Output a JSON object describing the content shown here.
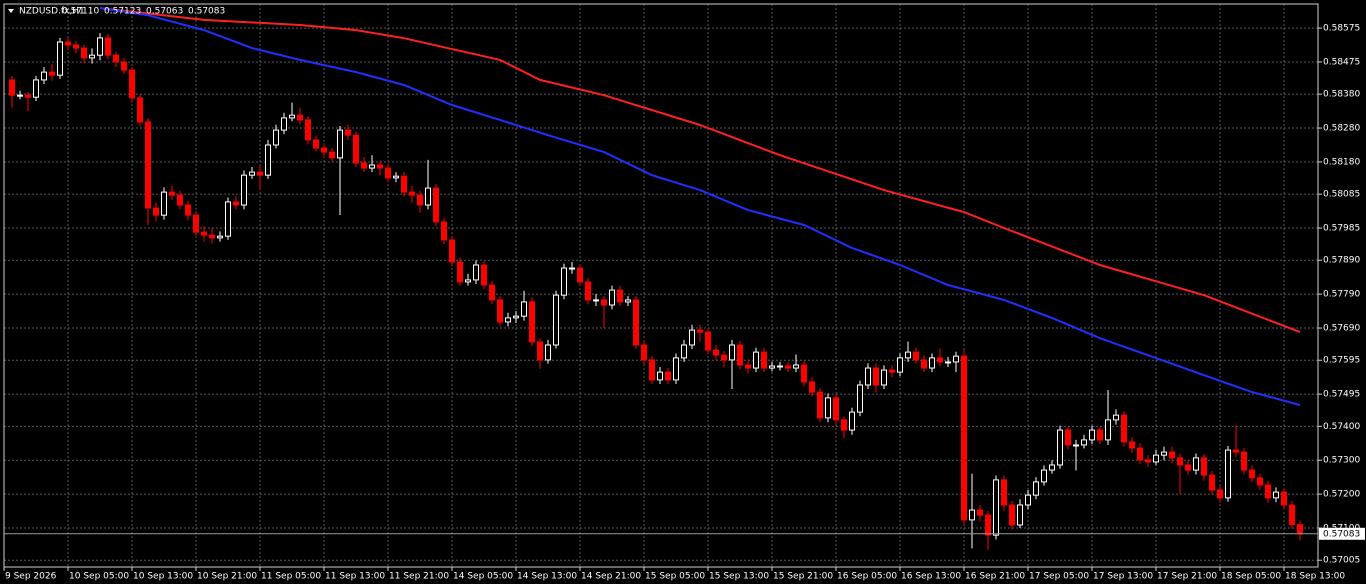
{
  "chart_data": {
    "type": "candlestick",
    "title": "NZDUSD.fx,H1",
    "header_values": [
      "0.57110",
      "0.57123",
      "0.57063",
      "0.57083"
    ],
    "up_color": "#000000",
    "up_stroke": "#ffffff",
    "down_color": "#ff0000",
    "down_stroke": "#ff0000",
    "ylim": [
      0.56985,
      0.58646
    ],
    "yticks": [
      0.58575,
      0.58475,
      {
        "value": 0.5838,
        "label": "0.58380"
      },
      {
        "value": 0.5828,
        "label": "0.58280"
      },
      {
        "value": 0.5818,
        "label": "0.58180"
      },
      0.58085,
      0.57985,
      {
        "value": 0.5789,
        "label": "0.57890"
      },
      {
        "value": 0.5779,
        "label": "0.57790"
      },
      {
        "value": 0.5769,
        "label": "0.57690"
      },
      0.57595,
      0.57495,
      {
        "value": 0.574,
        "label": "0.57400"
      },
      {
        "value": 0.573,
        "label": "0.57300"
      },
      {
        "value": 0.572,
        "label": "0.57200"
      },
      {
        "value": 0.571,
        "label": "0.57100"
      },
      0.57005
    ],
    "grid": true,
    "categories": [
      "9 Sep 2026",
      null,
      null,
      null,
      null,
      null,
      null,
      null,
      "10 Sep 05:00",
      null,
      null,
      null,
      null,
      null,
      null,
      null,
      "10 Sep 13:00",
      null,
      null,
      null,
      null,
      null,
      null,
      null,
      "10 Sep 21:00",
      null,
      null,
      null,
      null,
      null,
      null,
      null,
      "11 Sep 05:00",
      null,
      null,
      null,
      null,
      null,
      null,
      null,
      "11 Sep 13:00",
      null,
      null,
      null,
      null,
      null,
      null,
      null,
      "11 Sep 21:00",
      null,
      null,
      null,
      null,
      null,
      null,
      null,
      "14 Sep 05:00",
      null,
      null,
      null,
      null,
      null,
      null,
      null,
      "14 Sep 13:00",
      null,
      null,
      null,
      null,
      null,
      null,
      null,
      "14 Sep 21:00",
      null,
      null,
      null,
      null,
      null,
      null,
      null,
      "15 Sep 05:00",
      null,
      null,
      null,
      null,
      null,
      null,
      null,
      "15 Sep 13:00",
      null,
      null,
      null,
      null,
      null,
      null,
      null,
      "15 Sep 21:00",
      null,
      null,
      null,
      null,
      null,
      null,
      null,
      "16 Sep 05:00",
      null,
      null,
      null,
      null,
      null,
      null,
      null,
      "16 Sep 13:00",
      null,
      null,
      null,
      null,
      null,
      null,
      null,
      "16 Sep 21:00",
      null,
      null,
      null,
      null,
      null,
      null,
      null,
      "17 Sep 05:00",
      null,
      null,
      null,
      null,
      null,
      null,
      null,
      "17 Sep 13:00",
      null,
      null,
      null,
      null,
      null,
      null,
      null,
      "17 Sep 21:00",
      null,
      null,
      null,
      null,
      null,
      null,
      null,
      "18 Sep 05:00",
      null,
      null,
      null,
      null,
      null,
      null,
      null,
      "18 Sep 13:00",
      null
    ],
    "open": [
      0.58422,
      0.58377,
      0.58377,
      0.58371,
      0.58422,
      0.58445,
      0.58436,
      0.58534,
      0.58525,
      0.58516,
      0.58487,
      0.58495,
      0.58546,
      0.58495,
      0.58475,
      0.58451,
      0.58369,
      0.58298,
      0.58044,
      0.58023,
      0.58091,
      0.58082,
      0.58053,
      0.58023,
      0.57973,
      0.57964,
      0.57956,
      0.57961,
      0.58062,
      0.58053,
      0.58141,
      0.5815,
      0.58141,
      0.5823,
      0.58274,
      0.5831,
      0.58318,
      0.58304,
      0.58245,
      0.58221,
      0.58209,
      0.58192,
      0.58274,
      0.58259,
      0.58177,
      0.58162,
      0.58171,
      0.58162,
      0.58133,
      0.58138,
      0.58091,
      0.58082,
      0.58053,
      0.58103,
      0.58003,
      0.5795,
      0.57885,
      0.57826,
      0.57832,
      0.57876,
      0.57817,
      0.57773,
      0.57708,
      0.5772,
      0.57725,
      0.57767,
      0.57649,
      0.57596,
      0.5764,
      0.57787,
      0.57867,
      0.57867,
      0.57826,
      0.57773,
      0.57773,
      0.57758,
      0.57802,
      0.57767,
      0.57773,
      0.5764,
      0.57596,
      0.57537,
      0.5756,
      0.57537,
      0.57602,
      0.5764,
      0.57684,
      0.57678,
      0.57625,
      0.5761,
      0.57596,
      0.5764,
      0.57581,
      0.57572,
      0.57619,
      0.57572,
      0.57578,
      0.57578,
      0.57572,
      0.57581,
      0.57531,
      0.57501,
      0.57425,
      0.57484,
      0.57419,
      0.57389,
      0.57442,
      0.57522,
      0.57572,
      0.57522,
      0.57566,
      0.5756,
      0.57602,
      0.57619,
      0.57596,
      0.57572,
      0.57602,
      0.5759,
      0.5759,
      0.57607,
      0.57124,
      0.57153,
      0.57138,
      0.57079,
      0.57242,
      0.57168,
      0.57109,
      0.57168,
      0.57197,
      0.57236,
      0.57271,
      0.57286,
      0.57389,
      0.57345,
      0.57345,
      0.5736,
      0.57389,
      0.5736,
      0.57419,
      0.57433,
      0.57354,
      0.57336,
      0.57301,
      0.57295,
      0.57315,
      0.57324,
      0.57307,
      0.57286,
      0.57271,
      0.57307,
      0.57256,
      0.57212,
      0.57189,
      0.5733,
      0.57324,
      0.57271,
      0.57248,
      0.57227,
      0.57189,
      0.57206,
      0.57168,
      0.5711
    ],
    "high": [
      0.58434,
      0.5839,
      0.58386,
      0.58434,
      0.5846,
      0.5847,
      0.58546,
      0.5855,
      0.58537,
      0.58525,
      0.58515,
      0.5856,
      0.58558,
      0.58505,
      0.58487,
      0.5846,
      0.5838,
      0.5831,
      0.5806,
      0.58105,
      0.5811,
      0.58095,
      0.58066,
      0.58035,
      0.5799,
      0.57985,
      0.57975,
      0.58075,
      0.5808,
      0.58155,
      0.58165,
      0.5817,
      0.58245,
      0.5829,
      0.58325,
      0.58355,
      0.5834,
      0.58315,
      0.58258,
      0.58235,
      0.58222,
      0.58286,
      0.5829,
      0.5827,
      0.58195,
      0.582,
      0.58185,
      0.58175,
      0.5815,
      0.5815,
      0.5811,
      0.58095,
      0.58186,
      0.58115,
      0.58015,
      0.57962,
      0.57898,
      0.5785,
      0.5789,
      0.57888,
      0.5783,
      0.57785,
      0.57735,
      0.5774,
      0.578,
      0.5778,
      0.5766,
      0.57655,
      0.578,
      0.5788,
      0.57885,
      0.57878,
      0.57838,
      0.5779,
      0.57785,
      0.57815,
      0.57815,
      0.57785,
      0.57785,
      0.57652,
      0.57608,
      0.57575,
      0.57572,
      0.57615,
      0.57655,
      0.577,
      0.577,
      0.5769,
      0.5764,
      0.57622,
      0.57655,
      0.57652,
      0.57598,
      0.57632,
      0.5763,
      0.5759,
      0.5759,
      0.5759,
      0.57612,
      0.57595,
      0.57545,
      0.57512,
      0.57497,
      0.57496,
      0.5743,
      0.57455,
      0.57535,
      0.57586,
      0.57585,
      0.5758,
      0.5758,
      0.57615,
      0.5765,
      0.57632,
      0.5761,
      0.57615,
      0.5763,
      0.57605,
      0.5762,
      0.57625,
      0.5726,
      0.57168,
      0.5715,
      0.57255,
      0.57255,
      0.5718,
      0.57185,
      0.57212,
      0.5725,
      0.57285,
      0.573,
      0.57402,
      0.574,
      0.5736,
      0.57375,
      0.57402,
      0.574,
      0.57507,
      0.5745,
      0.57445,
      0.57368,
      0.5735,
      0.57315,
      0.5733,
      0.5734,
      0.5734,
      0.5732,
      0.573,
      0.5732,
      0.57318,
      0.57268,
      0.57225,
      0.57342,
      0.57404,
      0.57336,
      0.57285,
      0.5726,
      0.5724,
      0.5722,
      0.57218,
      0.5718,
      0.57123
    ],
    "low": [
      0.5834,
      0.58365,
      0.5833,
      0.5836,
      0.5841,
      0.5842,
      0.58425,
      0.5851,
      0.585,
      0.5847,
      0.5847,
      0.5848,
      0.58482,
      0.5846,
      0.5844,
      0.58355,
      0.58285,
      0.57994,
      0.58005,
      0.5801,
      0.58068,
      0.5804,
      0.58008,
      0.5796,
      0.57945,
      0.5794,
      0.57945,
      0.5795,
      0.5804,
      0.5804,
      0.5813,
      0.581,
      0.5813,
      0.5822,
      0.58262,
      0.583,
      0.5829,
      0.58232,
      0.5821,
      0.58195,
      0.5818,
      0.58023,
      0.58245,
      0.58165,
      0.5815,
      0.5815,
      0.5814,
      0.5812,
      0.5812,
      0.58078,
      0.5806,
      0.5803,
      0.5804,
      0.5799,
      0.57938,
      0.57872,
      0.57815,
      0.57815,
      0.5782,
      0.57805,
      0.5776,
      0.57695,
      0.57695,
      0.57705,
      0.57712,
      0.57636,
      0.5757,
      0.57585,
      0.5763,
      0.57775,
      0.5785,
      0.57815,
      0.5776,
      0.57755,
      0.5769,
      0.57745,
      0.57755,
      0.57755,
      0.57628,
      0.57583,
      0.57525,
      0.57525,
      0.57525,
      0.57525,
      0.5759,
      0.57628,
      0.5765,
      0.57612,
      0.57595,
      0.57575,
      0.5751,
      0.57568,
      0.57555,
      0.5756,
      0.5756,
      0.57562,
      0.57565,
      0.5756,
      0.5756,
      0.57518,
      0.57488,
      0.57412,
      0.57412,
      0.57405,
      0.57365,
      0.57375,
      0.5743,
      0.5751,
      0.575,
      0.5751,
      0.57545,
      0.57548,
      0.5759,
      0.57585,
      0.5756,
      0.5756,
      0.57578,
      0.57575,
      0.5756,
      0.5711,
      0.5704,
      0.5712,
      0.57035,
      0.57066,
      0.5715,
      0.57095,
      0.571,
      0.57155,
      0.57185,
      0.57225,
      0.5726,
      0.57275,
      0.57332,
      0.5727,
      0.57335,
      0.57348,
      0.57348,
      0.57345,
      0.57405,
      0.5734,
      0.57322,
      0.57288,
      0.5728,
      0.57285,
      0.573,
      0.57292,
      0.572,
      0.57258,
      0.57258,
      0.5724,
      0.57198,
      0.57175,
      0.57178,
      0.5731,
      0.57258,
      0.57235,
      0.57212,
      0.57175,
      0.57176,
      0.57155,
      0.57098,
      0.57063
    ],
    "close": [
      0.58377,
      0.58377,
      0.58371,
      0.58422,
      0.58445,
      0.58436,
      0.58534,
      0.58525,
      0.58516,
      0.58487,
      0.58495,
      0.58546,
      0.58495,
      0.58475,
      0.58451,
      0.58369,
      0.58298,
      0.58044,
      0.58023,
      0.58091,
      0.58082,
      0.58053,
      0.58023,
      0.57973,
      0.57964,
      0.57956,
      0.57961,
      0.58062,
      0.58053,
      0.58141,
      0.5815,
      0.58141,
      0.5823,
      0.58274,
      0.5831,
      0.58318,
      0.58304,
      0.58245,
      0.58221,
      0.58209,
      0.58192,
      0.58274,
      0.58259,
      0.58177,
      0.58162,
      0.58171,
      0.58162,
      0.58133,
      0.58138,
      0.58091,
      0.58082,
      0.58053,
      0.58103,
      0.58003,
      0.5795,
      0.57885,
      0.57826,
      0.57832,
      0.57876,
      0.57817,
      0.57773,
      0.57708,
      0.5772,
      0.57725,
      0.57767,
      0.57649,
      0.57596,
      0.5764,
      0.57787,
      0.57867,
      0.57867,
      0.57826,
      0.57773,
      0.57773,
      0.57758,
      0.57802,
      0.57767,
      0.57773,
      0.5764,
      0.57596,
      0.57537,
      0.5756,
      0.57537,
      0.57602,
      0.5764,
      0.57684,
      0.57678,
      0.57625,
      0.5761,
      0.57596,
      0.5764,
      0.57581,
      0.57572,
      0.57619,
      0.57572,
      0.57578,
      0.57578,
      0.57572,
      0.57581,
      0.57531,
      0.57501,
      0.57425,
      0.57484,
      0.57419,
      0.57389,
      0.57442,
      0.57522,
      0.57572,
      0.57522,
      0.57566,
      0.5756,
      0.57602,
      0.57619,
      0.57596,
      0.57572,
      0.57602,
      0.5759,
      0.5759,
      0.57607,
      0.57124,
      0.57153,
      0.57138,
      0.57079,
      0.57242,
      0.57168,
      0.57109,
      0.57168,
      0.57197,
      0.57236,
      0.57271,
      0.57286,
      0.57389,
      0.57345,
      0.57345,
      0.5736,
      0.57389,
      0.5736,
      0.57419,
      0.57433,
      0.57354,
      0.57336,
      0.57301,
      0.57295,
      0.57315,
      0.57324,
      0.57307,
      0.57286,
      0.57271,
      0.57307,
      0.57256,
      0.57212,
      0.57189,
      0.5733,
      0.57324,
      0.57271,
      0.57248,
      0.57227,
      0.57189,
      0.57206,
      0.57168,
      0.5711,
      0.57083
    ],
    "lines": [
      {
        "color": "#ff2020",
        "x": [
          11,
          24,
          36,
          43,
          49,
          61,
          66,
          74,
          86,
          96,
          109,
          119,
          124,
          136,
          149,
          161
        ],
        "values": [
          0.58634,
          0.58599,
          0.58584,
          0.58569,
          0.58545,
          0.58481,
          0.58422,
          0.58377,
          0.58289,
          0.582,
          0.58097,
          0.58032,
          0.57985,
          0.57876,
          0.57787,
          0.57678
        ]
      },
      {
        "color": "#2030ff",
        "x": [
          11,
          17,
          24,
          30,
          36,
          43,
          49,
          55,
          61,
          67,
          74,
          80,
          86,
          92,
          99,
          105,
          111,
          117,
          124,
          130,
          136,
          142,
          149,
          155,
          161
        ],
        "values": [
          0.58634,
          0.58613,
          0.58569,
          0.58516,
          0.58481,
          0.58445,
          0.58407,
          0.58348,
          0.58304,
          0.58259,
          0.58209,
          0.58141,
          0.58097,
          0.58038,
          0.57994,
          0.57926,
          0.57876,
          0.57817,
          0.57773,
          0.5772,
          0.5766,
          0.5761,
          0.57551,
          0.57501,
          0.57463
        ]
      }
    ]
  }
}
